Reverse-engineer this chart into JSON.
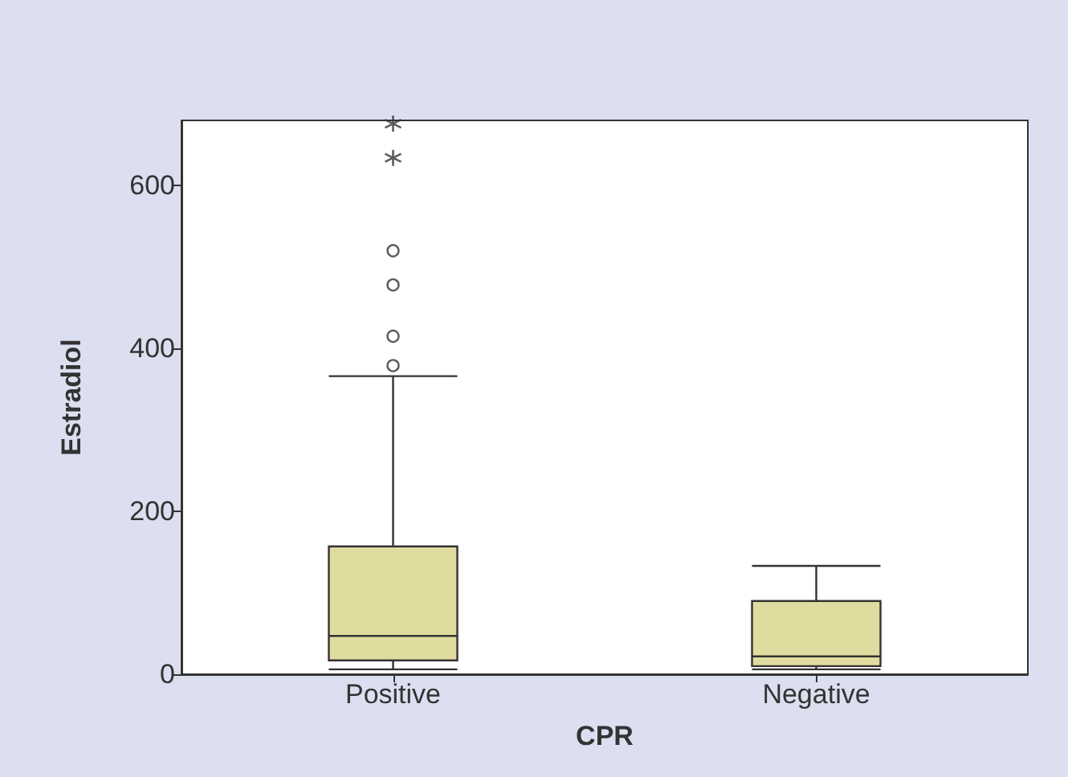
{
  "chart_data": {
    "type": "box",
    "xlabel": "CPR",
    "ylabel": "Estradiol",
    "categories": [
      "Positive",
      "Negative"
    ],
    "color": "#e0dca0",
    "boxes": [
      {
        "low": 6,
        "q1": 17,
        "median": 47,
        "q3": 157,
        "high": 366,
        "outliers": [
          379,
          415,
          478,
          520
        ]
      },
      {
        "low": 6,
        "q1": 10,
        "median": 22,
        "q3": 90,
        "high": 133
      }
    ],
    "series": [
      {
        "type": "scatter",
        "marker": "cross",
        "color": "#333333",
        "x": [
          "Positive",
          "Positive"
        ],
        "values": [
          634,
          676
        ]
      }
    ],
    "ylim": [
      0,
      680
    ],
    "yticks": [
      0,
      200,
      400,
      600
    ],
    "grid": false
  }
}
